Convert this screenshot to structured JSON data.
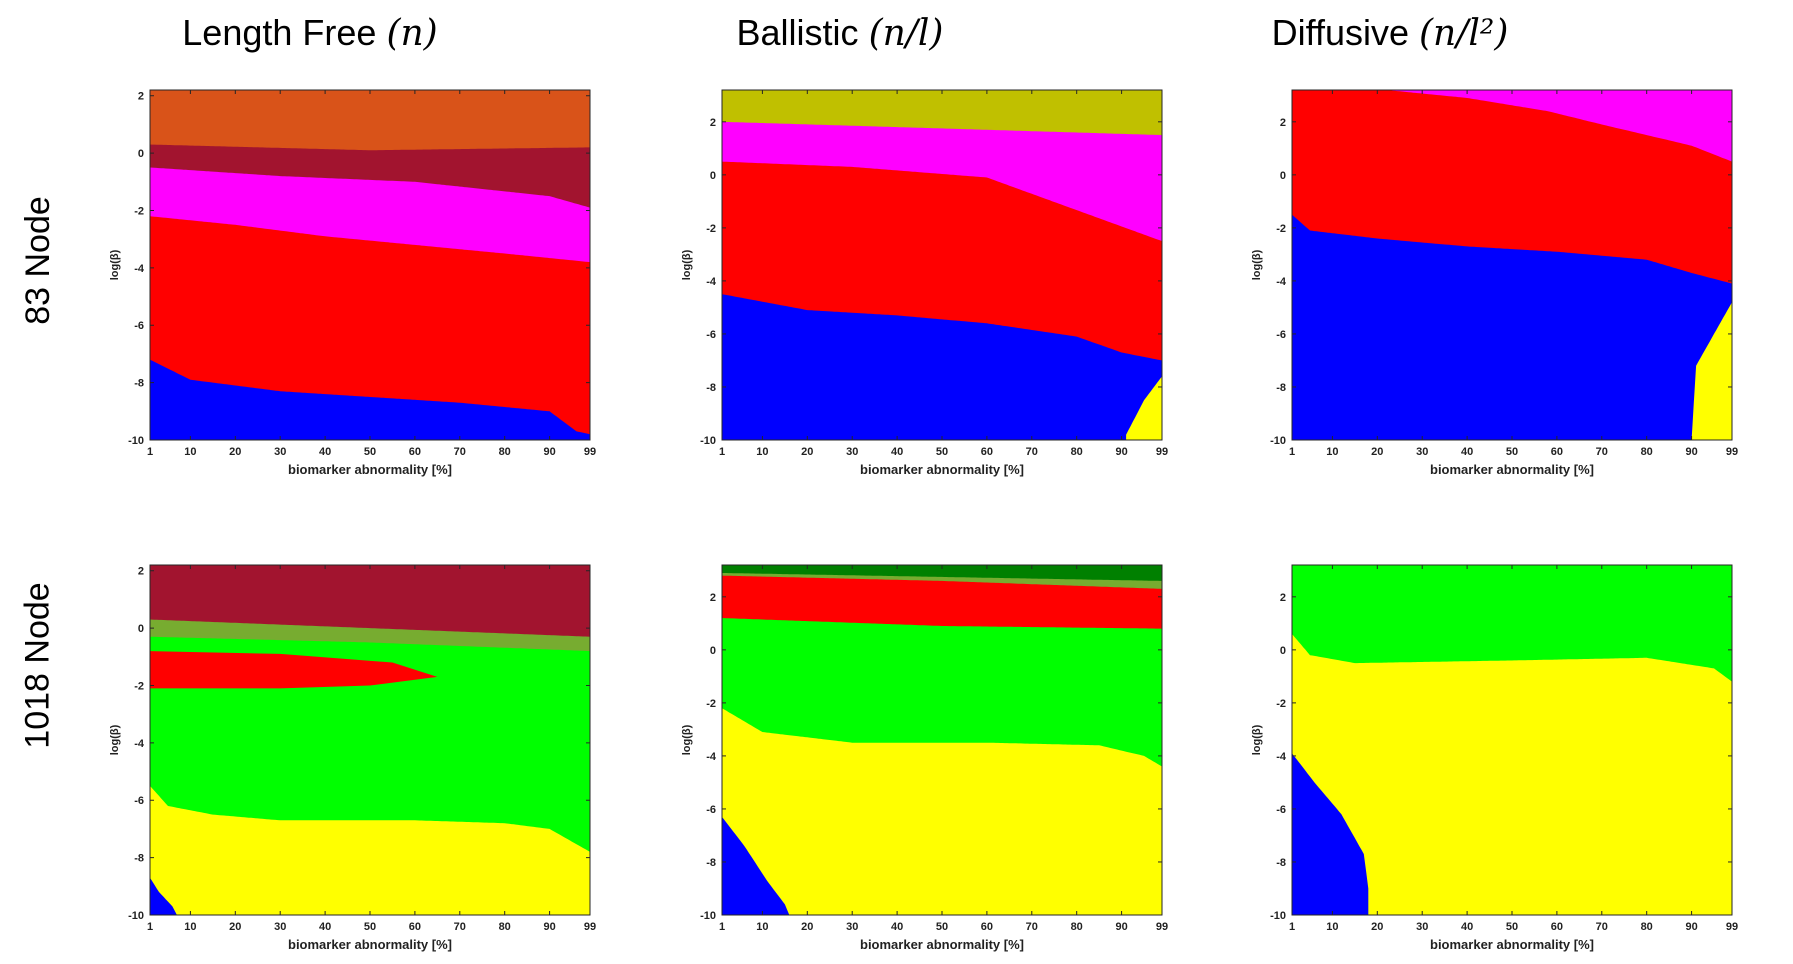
{
  "columns": [
    {
      "name": "Length Free",
      "math": "(n)"
    },
    {
      "name": "Ballistic",
      "math": "(n/l)"
    },
    {
      "name": "Diffusive",
      "math": "(n/l²)"
    }
  ],
  "rows": [
    "83 Node",
    "1018 Node"
  ],
  "colors": {
    "blue": "#0000ff",
    "red": "#ff0000",
    "magenta": "#ff00ff",
    "yellow": "#ffff00",
    "green": "#00ff00",
    "darkgreen": "#008000",
    "olive": "#c0c000",
    "orange": "#d95319",
    "maroon": "#a2142f",
    "cyan": "#00ffff",
    "olivegreen": "#77ac30"
  },
  "chart_data": [
    {
      "type": "heatmap",
      "row": "83 Node",
      "column": "Length Free",
      "xlabel": "biomarker abnormality [%]",
      "ylabel": "log(β)",
      "xlim": [
        1,
        99
      ],
      "ylim": [
        -10,
        2.2
      ],
      "xticks": [
        1,
        10,
        20,
        30,
        40,
        50,
        60,
        70,
        80,
        90,
        99
      ],
      "yticks": [
        -10,
        -8,
        -6,
        -4,
        -2,
        0,
        2
      ],
      "regions": [
        {
          "color": "orange",
          "upper_boundary_logbeta": [
            [
              1,
              2.2
            ],
            [
              99,
              2.2
            ]
          ]
        },
        {
          "color": "maroon",
          "upper_boundary_logbeta": [
            [
              1,
              0.3
            ],
            [
              50,
              0.1
            ],
            [
              99,
              0.2
            ]
          ]
        },
        {
          "color": "magenta",
          "upper_boundary_logbeta": [
            [
              1,
              -0.5
            ],
            [
              30,
              -0.8
            ],
            [
              60,
              -1.0
            ],
            [
              90,
              -1.5
            ],
            [
              99,
              -1.9
            ]
          ]
        },
        {
          "color": "red",
          "upper_boundary_logbeta": [
            [
              1,
              -2.2
            ],
            [
              20,
              -2.5
            ],
            [
              40,
              -2.9
            ],
            [
              60,
              -3.2
            ],
            [
              80,
              -3.5
            ],
            [
              99,
              -3.8
            ]
          ]
        },
        {
          "color": "blue",
          "upper_boundary_logbeta": [
            [
              1,
              -7.2
            ],
            [
              10,
              -7.9
            ],
            [
              30,
              -8.3
            ],
            [
              50,
              -8.5
            ],
            [
              70,
              -8.7
            ],
            [
              90,
              -9.0
            ],
            [
              96,
              -9.7
            ],
            [
              99,
              -9.8
            ]
          ]
        }
      ]
    },
    {
      "type": "heatmap",
      "row": "83 Node",
      "column": "Ballistic",
      "xlabel": "biomarker abnormality [%]",
      "ylabel": "log(β)",
      "xlim": [
        1,
        99
      ],
      "ylim": [
        -10,
        3.2
      ],
      "xticks": [
        1,
        10,
        20,
        30,
        40,
        50,
        60,
        70,
        80,
        90,
        99
      ],
      "yticks": [
        -10,
        -8,
        -6,
        -4,
        -2,
        0,
        2
      ],
      "regions": [
        {
          "color": "olive",
          "upper_boundary_logbeta": [
            [
              1,
              3.2
            ],
            [
              99,
              3.2
            ]
          ]
        },
        {
          "color": "magenta",
          "upper_boundary_logbeta": [
            [
              1,
              2.0
            ],
            [
              99,
              1.5
            ]
          ]
        },
        {
          "color": "red",
          "upper_boundary_logbeta": [
            [
              1,
              0.5
            ],
            [
              30,
              0.3
            ],
            [
              60,
              -0.1
            ],
            [
              99,
              -2.5
            ]
          ]
        },
        {
          "color": "blue",
          "upper_boundary_logbeta": [
            [
              1,
              -4.5
            ],
            [
              20,
              -5.1
            ],
            [
              40,
              -5.3
            ],
            [
              60,
              -5.6
            ],
            [
              80,
              -6.1
            ],
            [
              90,
              -6.7
            ],
            [
              99,
              -7.0
            ]
          ]
        },
        {
          "color": "yellow",
          "upper_boundary_logbeta": [
            [
              91,
              -9.8
            ],
            [
              95,
              -8.5
            ],
            [
              99,
              -7.6
            ]
          ]
        }
      ]
    },
    {
      "type": "heatmap",
      "row": "83 Node",
      "column": "Diffusive",
      "xlabel": "biomarker abnormality [%]",
      "ylabel": "log(β)",
      "xlim": [
        1,
        99
      ],
      "ylim": [
        -10,
        3.2
      ],
      "xticks": [
        1,
        10,
        20,
        30,
        40,
        50,
        60,
        70,
        80,
        90,
        99
      ],
      "yticks": [
        -10,
        -8,
        -6,
        -4,
        -2,
        0,
        2
      ],
      "regions": [
        {
          "color": "magenta",
          "upper_boundary_logbeta": [
            [
              1,
              3.2
            ],
            [
              99,
              3.2
            ]
          ]
        },
        {
          "color": "red",
          "upper_boundary_logbeta": [
            [
              1,
              3.2
            ],
            [
              22,
              3.2
            ],
            [
              40,
              2.9
            ],
            [
              58,
              2.4
            ],
            [
              70,
              1.9
            ],
            [
              90,
              1.1
            ],
            [
              99,
              0.5
            ]
          ]
        },
        {
          "color": "blue",
          "upper_boundary_logbeta": [
            [
              1,
              -1.5
            ],
            [
              5,
              -2.1
            ],
            [
              20,
              -2.4
            ],
            [
              40,
              -2.7
            ],
            [
              60,
              -2.9
            ],
            [
              80,
              -3.2
            ],
            [
              90,
              -3.7
            ],
            [
              99,
              -4.1
            ]
          ]
        },
        {
          "color": "yellow",
          "upper_boundary_logbeta": [
            [
              90,
              -10
            ],
            [
              91,
              -7.2
            ],
            [
              95,
              -6.0
            ],
            [
              99,
              -4.8
            ]
          ]
        }
      ]
    },
    {
      "type": "heatmap",
      "row": "1018 Node",
      "column": "Length Free",
      "xlabel": "biomarker abnormality [%]",
      "ylabel": "log(β)",
      "xlim": [
        1,
        99
      ],
      "ylim": [
        -10,
        2.2
      ],
      "xticks": [
        1,
        10,
        20,
        30,
        40,
        50,
        60,
        70,
        80,
        90,
        99
      ],
      "yticks": [
        -10,
        -8,
        -6,
        -4,
        -2,
        0,
        2
      ],
      "regions": [
        {
          "color": "maroon",
          "upper_boundary_logbeta": [
            [
              1,
              2.2
            ],
            [
              99,
              2.2
            ]
          ]
        },
        {
          "color": "olivegreen",
          "upper_boundary_logbeta": [
            [
              1,
              0.3
            ],
            [
              50,
              0.0
            ],
            [
              99,
              -0.3
            ]
          ]
        },
        {
          "color": "green",
          "upper_boundary_logbeta": [
            [
              1,
              -0.3
            ],
            [
              50,
              -0.5
            ],
            [
              99,
              -0.8
            ]
          ]
        },
        {
          "color": "red",
          "lens": [
            [
              1,
              -0.8
            ],
            [
              30,
              -0.9
            ],
            [
              55,
              -1.2
            ],
            [
              65,
              -1.7
            ],
            [
              50,
              -2.0
            ],
            [
              30,
              -2.1
            ],
            [
              1,
              -2.1
            ]
          ]
        },
        {
          "color": "yellow",
          "upper_boundary_logbeta": [
            [
              1,
              -5.5
            ],
            [
              5,
              -6.2
            ],
            [
              15,
              -6.5
            ],
            [
              30,
              -6.7
            ],
            [
              60,
              -6.7
            ],
            [
              80,
              -6.8
            ],
            [
              90,
              -7.0
            ],
            [
              99,
              -7.8
            ]
          ]
        },
        {
          "color": "blue",
          "upper_boundary_logbeta": [
            [
              1,
              -8.7
            ],
            [
              3,
              -9.2
            ],
            [
              6,
              -9.7
            ],
            [
              7,
              -10
            ]
          ]
        }
      ]
    },
    {
      "type": "heatmap",
      "row": "1018 Node",
      "column": "Ballistic",
      "xlabel": "biomarker abnormality [%]",
      "ylabel": "log(β)",
      "xlim": [
        1,
        99
      ],
      "ylim": [
        -10,
        3.2
      ],
      "xticks": [
        1,
        10,
        20,
        30,
        40,
        50,
        60,
        70,
        80,
        90,
        99
      ],
      "yticks": [
        -10,
        -8,
        -6,
        -4,
        -2,
        0,
        2
      ],
      "regions": [
        {
          "color": "darkgreen",
          "upper_boundary_logbeta": [
            [
              1,
              3.2
            ],
            [
              99,
              3.2
            ]
          ]
        },
        {
          "color": "olivegreen",
          "upper_boundary_logbeta": [
            [
              1,
              2.9
            ],
            [
              99,
              2.6
            ]
          ]
        },
        {
          "color": "red",
          "upper_boundary_logbeta": [
            [
              1,
              2.8
            ],
            [
              50,
              2.6
            ],
            [
              99,
              2.3
            ]
          ]
        },
        {
          "color": "green",
          "upper_boundary_logbeta": [
            [
              1,
              1.2
            ],
            [
              50,
              0.9
            ],
            [
              99,
              0.8
            ]
          ]
        },
        {
          "color": "yellow",
          "upper_boundary_logbeta": [
            [
              1,
              -2.2
            ],
            [
              10,
              -3.1
            ],
            [
              30,
              -3.5
            ],
            [
              60,
              -3.5
            ],
            [
              85,
              -3.6
            ],
            [
              95,
              -4.0
            ],
            [
              99,
              -4.4
            ]
          ]
        },
        {
          "color": "blue",
          "upper_boundary_logbeta": [
            [
              1,
              -6.3
            ],
            [
              6,
              -7.4
            ],
            [
              11,
              -8.7
            ],
            [
              15,
              -9.6
            ],
            [
              16,
              -10
            ]
          ]
        }
      ]
    },
    {
      "type": "heatmap",
      "row": "1018 Node",
      "column": "Diffusive",
      "xlabel": "biomarker abnormality [%]",
      "ylabel": "log(β)",
      "xlim": [
        1,
        99
      ],
      "ylim": [
        -10,
        3.2
      ],
      "xticks": [
        1,
        10,
        20,
        30,
        40,
        50,
        60,
        70,
        80,
        90,
        99
      ],
      "yticks": [
        -10,
        -8,
        -6,
        -4,
        -2,
        0,
        2
      ],
      "regions": [
        {
          "color": "green",
          "upper_boundary_logbeta": [
            [
              1,
              3.2
            ],
            [
              99,
              3.2
            ]
          ]
        },
        {
          "color": "yellow",
          "upper_boundary_logbeta": [
            [
              1,
              0.6
            ],
            [
              5,
              -0.2
            ],
            [
              15,
              -0.5
            ],
            [
              50,
              -0.4
            ],
            [
              80,
              -0.3
            ],
            [
              95,
              -0.7
            ],
            [
              99,
              -1.2
            ]
          ]
        },
        {
          "color": "blue",
          "upper_boundary_logbeta": [
            [
              1,
              -3.9
            ],
            [
              6,
              -5.0
            ],
            [
              12,
              -6.2
            ],
            [
              17,
              -7.7
            ],
            [
              18,
              -9.0
            ],
            [
              18,
              -10
            ]
          ]
        }
      ]
    }
  ]
}
